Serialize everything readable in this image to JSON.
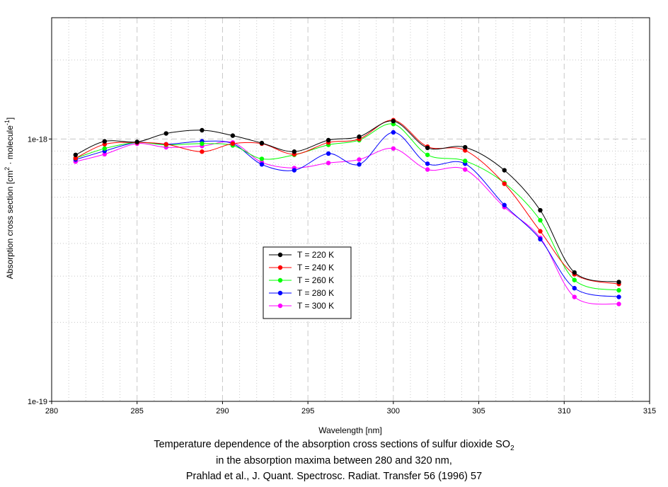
{
  "chart_data": {
    "type": "line",
    "title": "",
    "xlabel": "Wavelength [nm]",
    "ylabel_main": "Absorption cross section [cm",
    "ylabel_sup1": "2",
    "ylabel_mid": " · molecule",
    "ylabel_sup2": "-1",
    "ylabel_end": "]",
    "xlim": [
      280,
      315
    ],
    "ylim": [
      1e-19,
      2.9e-18
    ],
    "yscale": "log",
    "xticks": [
      280,
      285,
      290,
      295,
      300,
      305,
      310,
      315
    ],
    "yticks": [
      1e-19,
      1e-18
    ],
    "ytick_labels": [
      "1e-19",
      "1e-18"
    ],
    "grid": true,
    "legend_position": "center-left",
    "x": [
      281.4,
      283.1,
      285.0,
      286.7,
      288.8,
      290.6,
      292.3,
      294.2,
      296.2,
      298.0,
      300.0,
      302.0,
      304.2,
      306.5,
      308.6,
      310.6,
      313.2
    ],
    "series": [
      {
        "name": "T = 220 K",
        "color": "#000000",
        "values": [
          8.7e-19,
          9.8e-19,
          9.75e-19,
          1.05e-18,
          1.08e-18,
          1.03e-18,
          9.65e-19,
          8.95e-19,
          9.9e-19,
          1.02e-18,
          1.17e-18,
          9.25e-19,
          9.3e-19,
          7.6e-19,
          5.35e-19,
          3.1e-19,
          2.85e-19
        ]
      },
      {
        "name": "T = 240 K",
        "color": "#ff0000",
        "values": [
          8.45e-19,
          9.55e-19,
          9.7e-19,
          9.55e-19,
          8.95e-19,
          9.6e-19,
          9.6e-19,
          8.75e-19,
          9.7e-19,
          1e-18,
          1.18e-18,
          9.35e-19,
          9.05e-19,
          6.75e-19,
          4.45e-19,
          3.05e-19,
          2.8e-19
        ]
      },
      {
        "name": "T = 260 K",
        "color": "#00ff00",
        "values": [
          8.45e-19,
          9.2e-19,
          9.7e-19,
          9.5e-19,
          9.6e-19,
          9.45e-19,
          8.4e-19,
          8.7e-19,
          9.5e-19,
          9.9e-19,
          1.14e-18,
          8.7e-19,
          8.25e-19,
          6.8e-19,
          4.9e-19,
          2.9e-19,
          2.65e-19
        ]
      },
      {
        "name": "T = 280 K",
        "color": "#0000ff",
        "values": [
          8.35e-19,
          9e-19,
          9.7e-19,
          9.55e-19,
          9.8e-19,
          9.6e-19,
          8e-19,
          7.6e-19,
          8.8e-19,
          8e-19,
          1.06e-18,
          8.05e-19,
          8.05e-19,
          5.6e-19,
          4.15e-19,
          2.7e-19,
          2.5e-19
        ]
      },
      {
        "name": "T = 300 K",
        "color": "#ff00ff",
        "values": [
          8.2e-19,
          8.75e-19,
          9.6e-19,
          9.3e-19,
          9.4e-19,
          9.7e-19,
          8.15e-19,
          7.75e-19,
          8.1e-19,
          8.35e-19,
          9.2e-19,
          7.65e-19,
          7.65e-19,
          5.5e-19,
          4.2e-19,
          2.5e-19,
          2.35e-19
        ]
      }
    ]
  },
  "caption": {
    "line1_main": "Temperature dependence of the absorption cross sections of sulfur dioxide SO",
    "line1_sub": "2",
    "line2": "in the absorption maxima between 280 and 320 nm,",
    "line3": "Prahlad et al., J. Quant. Spectrosc. Radiat. Transfer 56 (1996) 57"
  }
}
